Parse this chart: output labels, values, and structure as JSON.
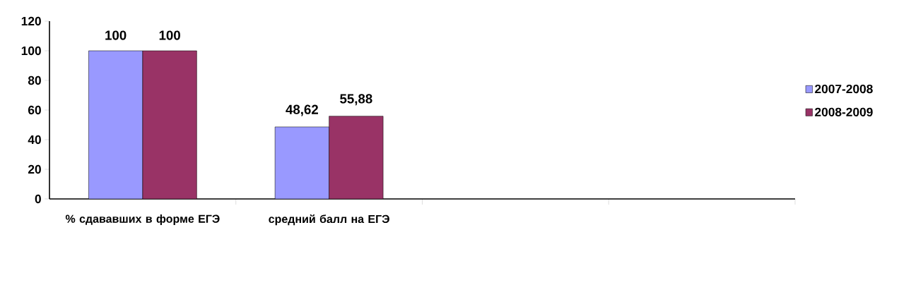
{
  "chart_data": {
    "type": "bar",
    "categories": [
      "% сдававших в форме ЕГЭ",
      "средний балл на ЕГЭ",
      null,
      null
    ],
    "series": [
      {
        "name": "2007-2008",
        "color": "#9999ff",
        "values": [
          100,
          48.62,
          null,
          null
        ],
        "value_labels": [
          "100",
          "48,62",
          null,
          null
        ]
      },
      {
        "name": "2008-2009",
        "color": "#993366",
        "values": [
          100,
          55.88,
          null,
          null
        ],
        "value_labels": [
          "100",
          "55,88",
          null,
          null
        ]
      }
    ],
    "ylim": [
      0,
      120
    ],
    "yticks": [
      0,
      20,
      40,
      60,
      80,
      100,
      120
    ],
    "legend": "right",
    "grid": false
  }
}
